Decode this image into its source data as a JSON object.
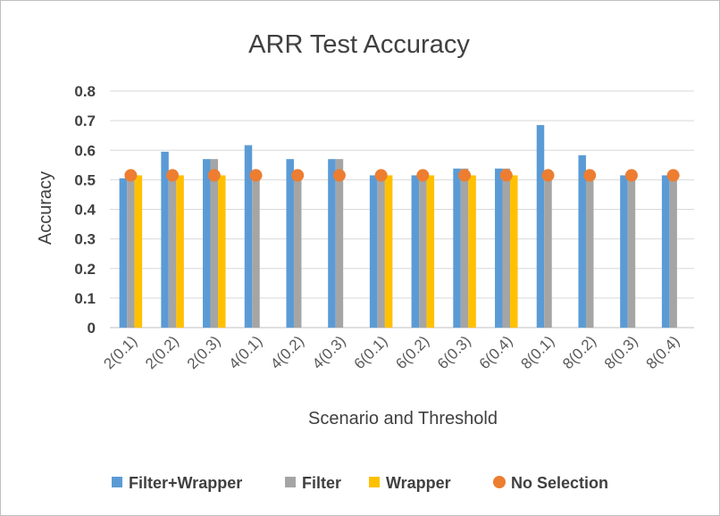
{
  "chart_data": {
    "type": "bar",
    "title": "ARR Test Accuracy",
    "xlabel": "Scenario and Threshold",
    "ylabel": "Accuracy",
    "ylim": [
      0,
      0.8
    ],
    "yticks": [
      "0",
      "0.1",
      "0.2",
      "0.3",
      "0.4",
      "0.5",
      "0.6",
      "0.7",
      "0.8"
    ],
    "grid": true,
    "legend_position": "bottom",
    "categories": [
      "2(0.1)",
      "2(0.2)",
      "2(0.3)",
      "4(0.1)",
      "4(0.2)",
      "4(0.3)",
      "6(0.1)",
      "6(0.2)",
      "6(0.3)",
      "6(0.4)",
      "8(0.1)",
      "8(0.2)",
      "8(0.3)",
      "8(0.4)"
    ],
    "series": [
      {
        "name": "Filter+Wrapper",
        "kind": "bar",
        "color": "#5b9bd5",
        "values": [
          0.505,
          0.595,
          0.57,
          0.617,
          0.57,
          0.57,
          0.515,
          0.515,
          0.538,
          0.538,
          0.685,
          0.583,
          0.515,
          0.515
        ]
      },
      {
        "name": "Filter",
        "kind": "bar",
        "color": "#a5a5a5",
        "values": [
          0.505,
          0.515,
          0.57,
          0.515,
          0.515,
          0.57,
          0.515,
          0.515,
          0.538,
          0.538,
          0.515,
          0.515,
          0.515,
          0.515
        ]
      },
      {
        "name": "Wrapper",
        "kind": "bar",
        "color": "#ffc000",
        "values": [
          0.515,
          0.515,
          0.515,
          null,
          null,
          null,
          0.515,
          0.515,
          0.515,
          0.515,
          null,
          null,
          null,
          null
        ]
      },
      {
        "name": "No Selection",
        "kind": "marker",
        "color": "#ed7d31",
        "values": [
          0.515,
          0.515,
          0.515,
          0.515,
          0.515,
          0.515,
          0.515,
          0.515,
          0.515,
          0.515,
          0.515,
          0.515,
          0.515,
          0.515
        ]
      }
    ]
  }
}
